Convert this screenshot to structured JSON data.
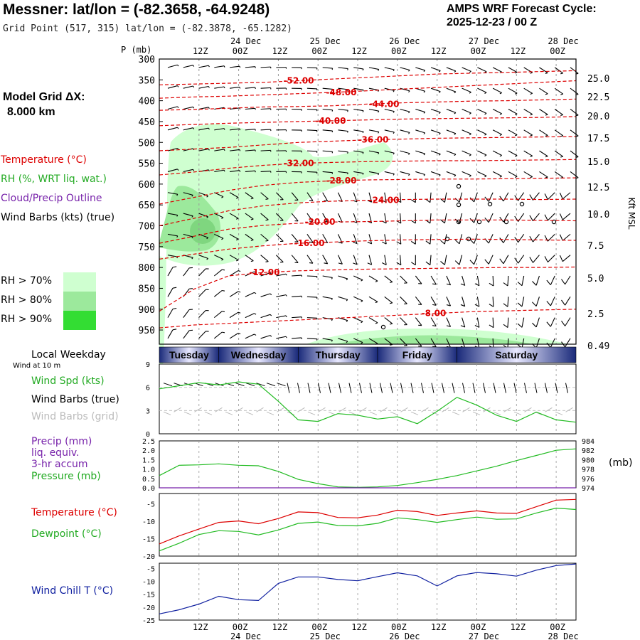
{
  "header": {
    "title": "Messner:  lat/lon = (-82.3658, -64.9248)",
    "subtitle": "Grid Point (517, 315) lat/lon = (-82.3878, -65.1282)",
    "cycle_line1": "AMPS WRF Forecast Cycle:",
    "cycle_line2": "2025-12-23 / 00  Z",
    "model_grid_line1": "Model Grid ΔX:",
    "model_grid_line2": "8.000 km"
  },
  "legend": {
    "temperature": "Temperature (°C)",
    "rh": "RH (%, WRT liq. wat.)",
    "cloud": "Cloud/Precip Outline",
    "wind_barbs": "Wind Barbs (kts) (true)",
    "rh70": "RH > 70%",
    "rh80": "RH > 80%",
    "rh90": "RH > 90%",
    "rh_colors": [
      "#cfffd0",
      "#9ce99c",
      "#33dd33"
    ]
  },
  "colors": {
    "temperature": "#dd0000",
    "rh": "#22bb22",
    "cloud": "#7722aa",
    "wind_chill": "#1020a0",
    "grid": "#999999",
    "weekday_bar": "#1a2a7a"
  },
  "time_axis": {
    "ticks": [
      "12Z",
      "00Z",
      "12Z",
      "00Z",
      "12Z",
      "00Z",
      "12Z",
      "00Z",
      "12Z",
      "00Z"
    ],
    "days": [
      "24 Dec",
      "25 Dec",
      "26 Dec",
      "27 Dec",
      "28 Dec"
    ],
    "weekdays": [
      "Tuesday",
      "Wednesday",
      "Thursday",
      "Friday",
      "Saturday"
    ]
  },
  "panels": {
    "local_weekday": "Local Weekday",
    "wind_at_10m": "Wind at 10 m",
    "wind_spd": "Wind Spd (kts)",
    "wind_barbs_true": "Wind Barbs (true)",
    "wind_barbs_grid": "Wind Barbs (grid)",
    "precip_1": "Precip (mm)",
    "precip_2": "liq. equiv.",
    "precip_3": "3-hr accum",
    "pressure": "Pressure (mb)",
    "pressure_unit": "(mb)",
    "temperature": "Temperature (°C)",
    "dewpoint": "Dewpoint (°C)",
    "wind_chill": "Wind Chill T (°C)"
  },
  "chart_data": [
    {
      "type": "contour",
      "name": "time-height cross section",
      "ylabel": "P (mb)",
      "right_label": "Kft MSL",
      "y_ticks": [
        300,
        350,
        400,
        450,
        500,
        550,
        600,
        650,
        700,
        750,
        800,
        850,
        900,
        950
      ],
      "right_ticks": [
        "25.0",
        "22.5",
        "20.0",
        "17.5",
        "15.0",
        "12.5",
        "10.0",
        "7.5",
        "5.0",
        "2.5",
        "0.49"
      ],
      "temperature_contours": [
        {
          "label": "-52.00",
          "y_mb": [
            362,
            360,
            358,
            356,
            352,
            348,
            344,
            340,
            336,
            334,
            332,
            330,
            328
          ]
        },
        {
          "label": "-48.00",
          "y_mb": [
            394,
            391,
            389,
            386,
            383,
            380,
            376,
            372,
            368,
            364,
            360,
            356,
            352
          ]
        },
        {
          "label": "-44.00",
          "y_mb": [
            423,
            421,
            418,
            415,
            414,
            412,
            408,
            405,
            403,
            401,
            400,
            398,
            396
          ]
        },
        {
          "label": "-40.00",
          "y_mb": [
            460,
            457,
            454,
            452,
            450,
            448,
            446,
            444,
            443,
            442,
            441,
            440,
            438
          ]
        },
        {
          "label": "-36.00",
          "y_mb": [
            520,
            516,
            512,
            506,
            500,
            497,
            494,
            492,
            490,
            489,
            488,
            487,
            486
          ]
        },
        {
          "label": "-32.00",
          "y_mb": [
            578,
            571,
            562,
            555,
            550,
            548,
            546,
            545,
            544,
            544,
            543,
            542,
            541
          ]
        },
        {
          "label": "-28.00",
          "y_mb": [
            648,
            632,
            615,
            603,
            596,
            592,
            590,
            589,
            588,
            588,
            587,
            586,
            585
          ]
        },
        {
          "label": "-24.00",
          "y_mb": [
            700,
            682,
            664,
            652,
            645,
            641,
            639,
            637,
            636,
            636,
            636,
            637,
            636
          ]
        },
        {
          "label": "-20.00",
          "y_mb": [
            742,
            725,
            708,
            699,
            694,
            691,
            690,
            688,
            686,
            686,
            686,
            687,
            688
          ]
        },
        {
          "label": "-16.00",
          "y_mb": [
            780,
            768,
            756,
            748,
            742,
            739,
            736,
            734,
            733,
            732,
            733,
            734,
            735
          ]
        },
        {
          "label": "-12.00",
          "y_mb": [
            905,
            852,
            820,
            812,
            808,
            806,
            804,
            803,
            802,
            801,
            800,
            800,
            799
          ]
        },
        {
          "label": "-8.00",
          "y_mb": [
            945,
            938,
            934,
            930,
            926,
            922,
            918,
            914,
            910,
            906,
            904,
            902,
            900
          ]
        }
      ],
      "wind_barb_columns": 27,
      "wind_barb_rows": 14
    },
    {
      "type": "line",
      "name": "surface wind",
      "xlim": [
        0,
        126
      ],
      "ylim": [
        0,
        9
      ],
      "y_ticks": [
        0,
        3,
        6,
        9
      ],
      "x": [
        0,
        6,
        12,
        18,
        24,
        30,
        36,
        42,
        48,
        54,
        60,
        66,
        72,
        78,
        84,
        90,
        96,
        102,
        108,
        114,
        120,
        126
      ],
      "series": [
        {
          "name": "Wind Spd (kts)",
          "values": [
            5.8,
            6.2,
            6.6,
            6.3,
            6.7,
            6.4,
            4.2,
            1.8,
            1.6,
            2.6,
            2.4,
            1.9,
            2.2,
            1.3,
            2.9,
            4.7,
            3.7,
            2.4,
            1.6,
            2.8,
            1.8,
            1.5
          ]
        }
      ]
    },
    {
      "type": "line",
      "name": "precip and pressure",
      "xlim": [
        0,
        126
      ],
      "ylim_left": [
        0,
        2.5
      ],
      "ylim_right": [
        974,
        984
      ],
      "left_ticks": [
        "0.0",
        "0.5",
        "1.0",
        "1.5",
        "2.0",
        "2.5"
      ],
      "right_ticks": [
        "974",
        "976",
        "978",
        "980",
        "982",
        "984"
      ],
      "x": [
        0,
        6,
        12,
        18,
        24,
        30,
        36,
        42,
        48,
        54,
        60,
        66,
        72,
        78,
        84,
        90,
        96,
        102,
        108,
        114,
        120,
        126
      ],
      "series": [
        {
          "name": "Pressure (mb)",
          "values": [
            976.6,
            978.8,
            978.9,
            979.1,
            978.8,
            978.7,
            977.5,
            975.8,
            974.9,
            974.2,
            974.1,
            974.2,
            974.5,
            975.1,
            975.8,
            976.6,
            977.6,
            978.6,
            979.8,
            980.9,
            982.0,
            982.3
          ]
        },
        {
          "name": "Precip (mm)",
          "values": [
            0,
            0,
            0,
            0,
            0,
            0,
            0,
            0,
            0,
            0,
            0,
            0,
            0,
            0,
            0,
            0,
            0,
            0,
            0,
            0,
            0,
            0
          ]
        }
      ]
    },
    {
      "type": "line",
      "name": "temperature and dewpoint",
      "xlim": [
        0,
        126
      ],
      "ylim": [
        -20,
        -2
      ],
      "y_ticks": [
        "-5",
        "-10",
        "-15",
        "-20"
      ],
      "x": [
        0,
        6,
        12,
        18,
        24,
        30,
        36,
        42,
        48,
        54,
        60,
        66,
        72,
        78,
        84,
        90,
        96,
        102,
        108,
        114,
        120,
        126
      ],
      "series": [
        {
          "name": "Temperature (°C)",
          "values": [
            -16.5,
            -14.2,
            -12.2,
            -10.3,
            -9.9,
            -10.7,
            -9.2,
            -7.3,
            -7.5,
            -8.9,
            -9.0,
            -8.2,
            -6.8,
            -7.2,
            -8.3,
            -7.6,
            -7.0,
            -7.6,
            -7.7,
            -5.8,
            -3.9,
            -3.7
          ]
        },
        {
          "name": "Dewpoint (°C)",
          "values": [
            -18.5,
            -16.3,
            -13.8,
            -12.7,
            -12.9,
            -13.9,
            -12.5,
            -10.6,
            -10.2,
            -11.2,
            -11.3,
            -10.6,
            -9.0,
            -9.5,
            -10.3,
            -9.5,
            -8.8,
            -9.4,
            -9.3,
            -7.6,
            -6.2,
            -6.6
          ]
        }
      ]
    },
    {
      "type": "line",
      "name": "wind chill",
      "xlim": [
        0,
        126
      ],
      "ylim": [
        -25,
        -3
      ],
      "y_ticks": [
        "-5",
        "-10",
        "-15",
        "-20",
        "-25"
      ],
      "x": [
        0,
        6,
        12,
        18,
        24,
        30,
        36,
        42,
        48,
        54,
        60,
        66,
        72,
        78,
        84,
        90,
        96,
        102,
        108,
        114,
        120,
        126
      ],
      "series": [
        {
          "name": "Wind Chill T (°C)",
          "values": [
            -22.6,
            -21.0,
            -18.8,
            -15.8,
            -17.1,
            -17.4,
            -10.8,
            -8.3,
            -8.3,
            -9.3,
            -9.8,
            -8.2,
            -6.7,
            -7.9,
            -11.8,
            -7.9,
            -6.6,
            -7.1,
            -8.0,
            -5.7,
            -3.9,
            -3.3
          ]
        }
      ]
    }
  ]
}
